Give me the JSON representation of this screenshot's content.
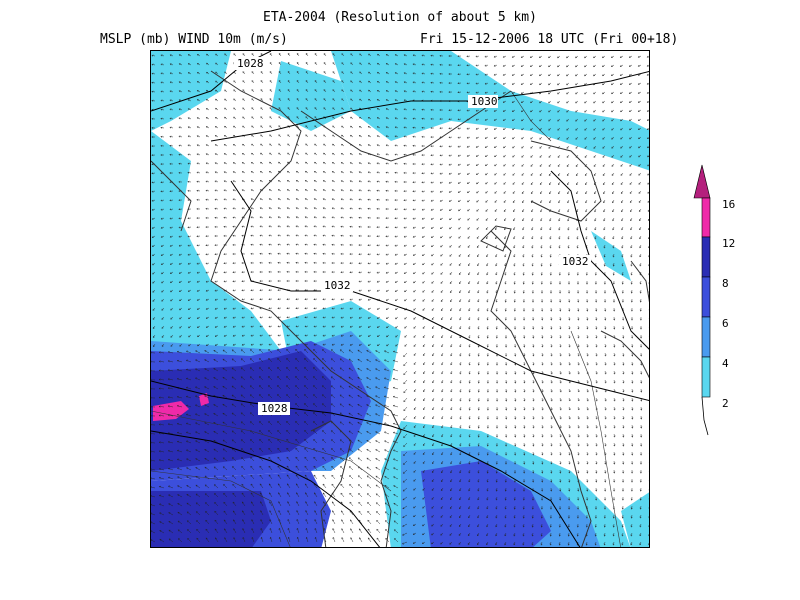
{
  "header": {
    "title": "ETA-2004 (Resolution of about 5 km)",
    "left_label": "MSLP (mb)  WIND 10m (m/s)",
    "right_label": "Fri 15-12-2006 18 UTC (Fri 00+18)"
  },
  "map": {
    "isobar_labels": [
      "1028",
      "1030",
      "1032",
      "1032",
      "1028"
    ]
  },
  "legend": {
    "ticks": [
      "2",
      "4",
      "6",
      "8",
      "12",
      "16"
    ],
    "colors": {
      "2-4": "#5ad7ef",
      "4-6": "#4a9bef",
      "6-8": "#3c4fdc",
      "8-12": "#2a2db4",
      "12-16": "#ef2aa9",
      "16+": "#b4207d"
    }
  }
}
